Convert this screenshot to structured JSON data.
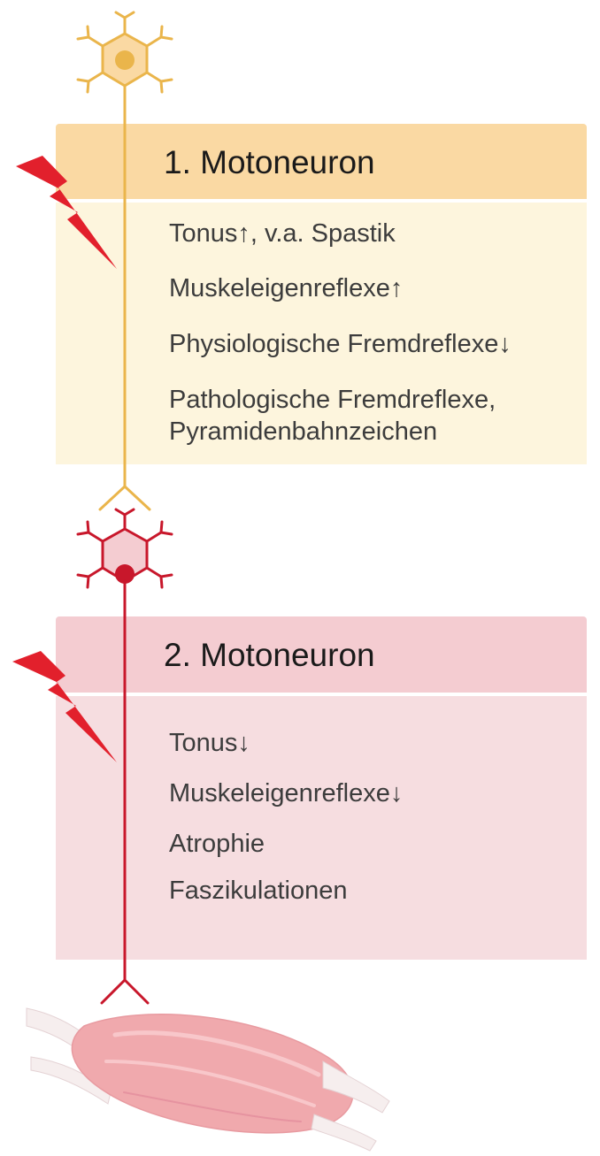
{
  "colors": {
    "upper_header": "#fad9a3",
    "upper_body": "#fdf5dd",
    "upper_neuron": "#eab54b",
    "lower_header": "#f4ccd1",
    "lower_body": "#f6dde0",
    "lower_neuron": "#c8172b",
    "lightning": "#e2202c",
    "muscle": "#f0a9ad"
  },
  "upper_motor_neuron": {
    "title": "1. Motoneuron",
    "items": [
      "Tonus↑, v.a. Spastik",
      "Muskeleigenreflexe↑",
      "Physiologische Fremdreflexe↓",
      "Pathologische Fremdreflexe,",
      "Pyramidenbahnzeichen"
    ]
  },
  "lower_motor_neuron": {
    "title": "2. Motoneuron",
    "items": [
      "Tonus↓",
      "Muskeleigenreflexe↓",
      "Atrophie",
      "Faszikulationen"
    ]
  },
  "icons": {
    "upper_neuron": "neuron-icon",
    "lower_neuron": "neuron-icon",
    "lesion_upper": "lightning-bolt-icon",
    "lesion_lower": "lightning-bolt-icon",
    "muscle": "muscle-icon"
  }
}
